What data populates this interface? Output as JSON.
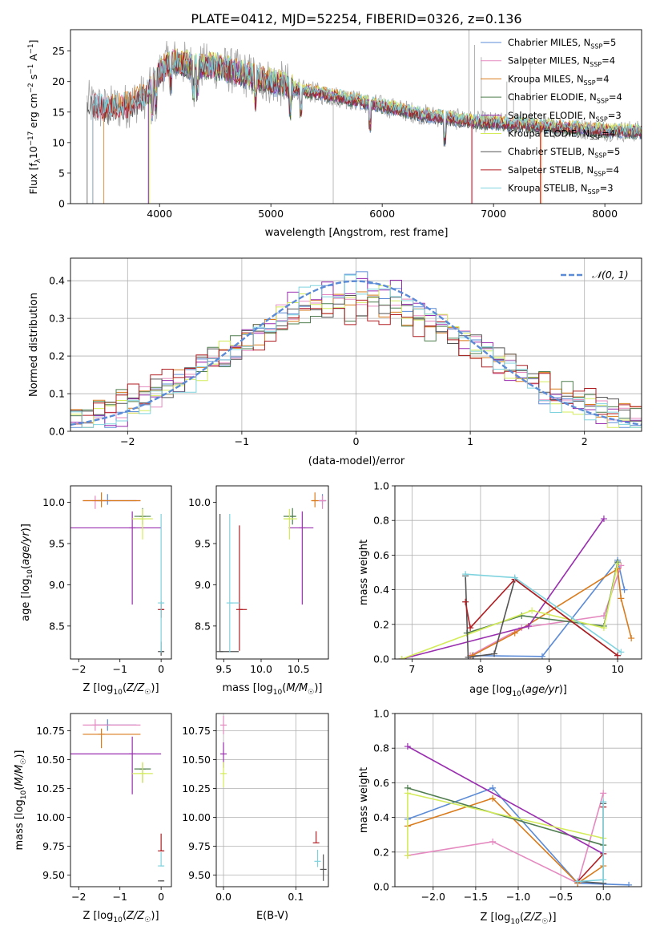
{
  "title": "PLATE=0412, MJD=52254, FIBERID=0326, z=0.136",
  "colors": {
    "Chabrier MILES": "#5b8bd6",
    "Salpeter MILES": "#e58ac0",
    "Kroupa MILES": "#d97b1c",
    "Chabrier ELODIE": "#4f7d4f",
    "Salpeter ELODIE": "#9a2fb0",
    "Kroupa ELODIE": "#d4ec5a",
    "Chabrier STELIB": "#555555",
    "Salpeter STELIB": "#b01e23",
    "Kroupa STELIB": "#7fd3df",
    "data": "#aaaaaa",
    "normal": "#5b8bd6"
  },
  "chart_data": [
    {
      "type": "line",
      "panel": "spectrum",
      "xlabel": "wavelength [Angstrom, rest frame]",
      "ylabel": "Flux [f_λ10^-17 erg cm^-2 s^-1 A^-1]",
      "xlim": [
        3200,
        8330
      ],
      "ylim": [
        0,
        28.5
      ],
      "xticks": [
        4000,
        5000,
        6000,
        7000,
        8000
      ],
      "yticks": [
        0,
        5,
        10,
        15,
        20,
        25
      ],
      "legend_position": "top-right",
      "grid": false,
      "series": [
        {
          "name": "Chabrier MILES",
          "nssp": "5"
        },
        {
          "name": "Salpeter MILES",
          "nssp": "4"
        },
        {
          "name": "Kroupa MILES",
          "nssp": "4"
        },
        {
          "name": "Chabrier ELODIE",
          "nssp": "4"
        },
        {
          "name": "Salpeter ELODIE",
          "nssp": "3"
        },
        {
          "name": "Kroupa ELODIE",
          "nssp": "4"
        },
        {
          "name": "Chabrier STELIB",
          "nssp": "5"
        },
        {
          "name": "Salpeter STELIB",
          "nssp": "4"
        },
        {
          "name": "Kroupa STELIB",
          "nssp": "3"
        }
      ],
      "continuum": {
        "x": [
          3350,
          3500,
          3700,
          3900,
          4000,
          4100,
          4300,
          4500,
          4800,
          5000,
          5300,
          5600,
          6000,
          6400,
          6800,
          7200,
          7600,
          8000,
          8300
        ],
        "y": [
          16.5,
          15.5,
          16.0,
          18.0,
          21.5,
          23.5,
          22.5,
          22.5,
          21.0,
          20.0,
          18.5,
          17.5,
          16.0,
          14.5,
          13.5,
          13.0,
          12.5,
          12.0,
          11.8
        ]
      }
    },
    {
      "type": "step",
      "panel": "residuals",
      "xlabel": "(data-model)/error",
      "ylabel": "Normed distribution",
      "xlim": [
        -2.5,
        2.5
      ],
      "ylim": [
        0,
        0.46
      ],
      "xticks": [
        -2,
        -1,
        0,
        1,
        2
      ],
      "yticks": [
        0.0,
        0.1,
        0.2,
        0.3,
        0.4
      ],
      "legend_position": "top-right",
      "grid": true,
      "normal_label": "𝒩(0, 1)",
      "normal": {
        "mean": 0,
        "sigma": 1
      },
      "bin_width": 0.1
    },
    {
      "type": "errorbar",
      "panel": "age-vs-Z",
      "xlabel": "Z [log10(Z/Z☉)]",
      "ylabel": "age [log10(age/yr)]",
      "xlim": [
        -2.2,
        0.25
      ],
      "ylim": [
        8.1,
        10.2
      ],
      "xticks": [
        -2,
        -1,
        0
      ],
      "yticks": [
        8.5,
        9.0,
        9.5,
        10.0
      ],
      "points": [
        {
          "series": "Chabrier MILES",
          "x": -1.3,
          "xerr": [
            0.3,
            0.7
          ],
          "y": 10.02,
          "yerr": [
            0.05,
            0.08
          ]
        },
        {
          "series": "Salpeter MILES",
          "x": -1.6,
          "xerr": [
            0.3,
            1.1
          ],
          "y": 10.02,
          "yerr": [
            0.1,
            0.06
          ]
        },
        {
          "series": "Kroupa MILES",
          "x": -1.45,
          "xerr": [
            0.45,
            0.95
          ],
          "y": 10.02,
          "yerr": [
            0.08,
            0.1
          ]
        },
        {
          "series": "Chabrier ELODIE",
          "x": -0.45,
          "xerr": [
            0.2,
            0.2
          ],
          "y": 9.83,
          "yerr": [
            0.1,
            0.1
          ]
        },
        {
          "series": "Salpeter ELODIE",
          "x": -0.7,
          "xerr": [
            1.5,
            0.7
          ],
          "y": 9.69,
          "yerr": [
            0.93,
            0.2
          ]
        },
        {
          "series": "Kroupa ELODIE",
          "x": -0.45,
          "xerr": [
            0.25,
            0.25
          ],
          "y": 9.8,
          "yerr": [
            0.25,
            0.12
          ]
        },
        {
          "series": "Chabrier STELIB",
          "x": 0.0,
          "xerr": [
            0.02,
            0.06
          ],
          "y": 8.19,
          "yerr": [
            0.05,
            0.12
          ]
        },
        {
          "series": "Salpeter STELIB",
          "x": 0.0,
          "xerr": [
            0.02,
            0.06
          ],
          "y": 8.7,
          "yerr": [
            0.1,
            0.1
          ]
        },
        {
          "series": "Kroupa STELIB",
          "x": 0.0,
          "xerr": [
            0.02,
            0.06
          ],
          "y": 8.78,
          "yerr": [
            0.6,
            1.08
          ]
        }
      ]
    },
    {
      "type": "errorbar",
      "panel": "age-vs-mass",
      "xlabel": "mass [log10(M/M☉)]",
      "ylabel": "",
      "xlim": [
        9.4,
        10.9
      ],
      "ylim": [
        8.1,
        10.2
      ],
      "xticks": [
        9.5,
        10.0,
        10.5
      ],
      "yticks": [
        8.5,
        9.0,
        9.5,
        10.0
      ],
      "points": [
        {
          "series": "Chabrier MILES",
          "x": 10.82,
          "xerr": [
            0.05,
            0.05
          ],
          "y": 10.02,
          "yerr": [
            0.05,
            0.08
          ]
        },
        {
          "series": "Salpeter MILES",
          "x": 10.82,
          "xerr": [
            0.05,
            0.05
          ],
          "y": 10.02,
          "yerr": [
            0.1,
            0.06
          ]
        },
        {
          "series": "Kroupa MILES",
          "x": 10.72,
          "xerr": [
            0.05,
            0.05
          ],
          "y": 10.02,
          "yerr": [
            0.08,
            0.1
          ]
        },
        {
          "series": "Chabrier ELODIE",
          "x": 10.42,
          "xerr": [
            0.12,
            0.05
          ],
          "y": 9.83,
          "yerr": [
            0.1,
            0.1
          ]
        },
        {
          "series": "Salpeter ELODIE",
          "x": 10.55,
          "xerr": [
            0.18,
            0.15
          ],
          "y": 9.69,
          "yerr": [
            0.93,
            0.2
          ]
        },
        {
          "series": "Kroupa ELODIE",
          "x": 10.38,
          "xerr": [
            0.08,
            0.1
          ],
          "y": 9.8,
          "yerr": [
            0.25,
            0.12
          ]
        },
        {
          "series": "Chabrier STELIB",
          "x": 9.45,
          "xerr": [
            0.0,
            0.25
          ],
          "y": 8.19,
          "yerr": [
            0.0,
            1.67
          ]
        },
        {
          "series": "Salpeter STELIB",
          "x": 9.71,
          "xerr": [
            0.01,
            0.1
          ],
          "y": 8.7,
          "yerr": [
            0.5,
            1.02
          ]
        },
        {
          "series": "Kroupa STELIB",
          "x": 9.58,
          "xerr": [
            0.0,
            0.13
          ],
          "y": 8.78,
          "yerr": [
            0.6,
            1.08
          ]
        }
      ]
    },
    {
      "type": "line",
      "panel": "weight-vs-age",
      "xlabel": "age [log10(age/yr)]",
      "ylabel": "mass weight",
      "xlim": [
        6.75,
        10.35
      ],
      "ylim": [
        0,
        1.0
      ],
      "xticks": [
        7,
        8,
        9,
        10
      ],
      "yticks": [
        0.0,
        0.2,
        0.4,
        0.6,
        0.8,
        1.0
      ],
      "grid": true,
      "series": [
        {
          "name": "Chabrier MILES",
          "x": [
            7.9,
            8.9,
            10.0,
            10.1
          ],
          "y": [
            0.02,
            0.015,
            0.57,
            0.4
          ]
        },
        {
          "name": "Salpeter MILES",
          "x": [
            7.85,
            8.6,
            9.8,
            10.05
          ],
          "y": [
            0.02,
            0.18,
            0.25,
            0.54
          ]
        },
        {
          "name": "Kroupa MILES",
          "x": [
            7.88,
            8.5,
            10.0,
            10.05,
            10.2
          ],
          "y": [
            0.02,
            0.15,
            0.52,
            0.35,
            0.12
          ]
        },
        {
          "name": "Chabrier ELODIE",
          "x": [
            7.8,
            8.6,
            9.8,
            10.0
          ],
          "y": [
            0.15,
            0.25,
            0.19,
            0.56
          ]
        },
        {
          "name": "Salpeter ELODIE",
          "x": [
            6.85,
            8.7,
            9.8
          ],
          "y": [
            0.0,
            0.19,
            0.81
          ]
        },
        {
          "name": "Kroupa ELODIE",
          "x": [
            6.85,
            8.75,
            9.8,
            10.0
          ],
          "y": [
            0.0,
            0.28,
            0.18,
            0.55
          ]
        },
        {
          "name": "Chabrier STELIB",
          "x": [
            7.78,
            7.82,
            8.2,
            8.5,
            10.0
          ],
          "y": [
            0.48,
            0.01,
            0.03,
            0.46,
            0.02
          ]
        },
        {
          "name": "Salpeter STELIB",
          "x": [
            7.78,
            7.85,
            8.5,
            10.0
          ],
          "y": [
            0.33,
            0.18,
            0.46,
            0.02
          ]
        },
        {
          "name": "Kroupa STELIB",
          "x": [
            7.78,
            8.5,
            10.05
          ],
          "y": [
            0.49,
            0.47,
            0.04
          ]
        }
      ]
    },
    {
      "type": "errorbar",
      "panel": "mass-vs-Z",
      "xlabel": "Z [log10(Z/Z☉)]",
      "ylabel": "mass [log10(M/M☉)]",
      "xlim": [
        -2.2,
        0.25
      ],
      "ylim": [
        9.4,
        10.9
      ],
      "xticks": [
        -2,
        -1,
        0
      ],
      "yticks": [
        9.5,
        9.75,
        10.0,
        10.25,
        10.5,
        10.75
      ],
      "points": [
        {
          "series": "Chabrier MILES",
          "x": -1.3,
          "xerr": [
            0.3,
            0.7
          ],
          "y": 10.8,
          "yerr": [
            0.05,
            0.05
          ]
        },
        {
          "series": "Salpeter MILES",
          "x": -1.6,
          "xerr": [
            0.3,
            1.1
          ],
          "y": 10.8,
          "yerr": [
            0.05,
            0.05
          ]
        },
        {
          "series": "Kroupa MILES",
          "x": -1.45,
          "xerr": [
            0.45,
            0.95
          ],
          "y": 10.72,
          "yerr": [
            0.12,
            0.05
          ]
        },
        {
          "series": "Chabrier ELODIE",
          "x": -0.45,
          "xerr": [
            0.2,
            0.2
          ],
          "y": 10.42,
          "yerr": [
            0.12,
            0.05
          ]
        },
        {
          "series": "Salpeter ELODIE",
          "x": -0.7,
          "xerr": [
            1.5,
            0.7
          ],
          "y": 10.55,
          "yerr": [
            0.35,
            0.15
          ]
        },
        {
          "series": "Kroupa ELODIE",
          "x": -0.45,
          "xerr": [
            0.25,
            0.25
          ],
          "y": 10.38,
          "yerr": [
            0.08,
            0.1
          ]
        },
        {
          "series": "Chabrier STELIB",
          "x": 0.0,
          "xerr": [
            0.02,
            0.06
          ],
          "y": 9.45,
          "yerr": [
            0.0,
            0.0
          ]
        },
        {
          "series": "Salpeter STELIB",
          "x": 0.0,
          "xerr": [
            0.02,
            0.06
          ],
          "y": 9.71,
          "yerr": [
            0.0,
            0.15
          ]
        },
        {
          "series": "Kroupa STELIB",
          "x": 0.0,
          "xerr": [
            0.02,
            0.06
          ],
          "y": 9.58,
          "yerr": [
            0.0,
            0.12
          ]
        }
      ]
    },
    {
      "type": "errorbar",
      "panel": "mass-vs-EBV",
      "xlabel": "E(B-V)",
      "ylabel": "",
      "xlim": [
        -0.01,
        0.145
      ],
      "ylim": [
        9.4,
        10.9
      ],
      "xticks": [
        0.0,
        0.1
      ],
      "yticks": [
        9.5,
        9.75,
        10.0,
        10.25,
        10.5,
        10.75
      ],
      "points": [
        {
          "series": "Salpeter MILES",
          "x": 0.0,
          "xerr": [
            0,
            0
          ],
          "y": 10.8,
          "yerr": [
            0.08,
            0.08
          ]
        },
        {
          "series": "Salpeter ELODIE",
          "x": 0.0,
          "xerr": [
            0,
            0
          ],
          "y": 10.55,
          "yerr": [
            0.12,
            0.1
          ]
        },
        {
          "series": "Kroupa ELODIE",
          "x": 0.0,
          "xerr": [
            0,
            0
          ],
          "y": 10.38,
          "yerr": [
            0.12,
            0.1
          ]
        },
        {
          "series": "Salpeter STELIB",
          "x": 0.128,
          "xerr": [
            0,
            0
          ],
          "y": 9.78,
          "yerr": [
            0.0,
            0.1
          ]
        },
        {
          "series": "Kroupa STELIB",
          "x": 0.13,
          "xerr": [
            0,
            0
          ],
          "y": 9.62,
          "yerr": [
            0.05,
            0.1
          ]
        },
        {
          "series": "Chabrier STELIB",
          "x": 0.138,
          "xerr": [
            0,
            0
          ],
          "y": 9.55,
          "yerr": [
            0.1,
            0.13
          ]
        }
      ]
    },
    {
      "type": "line",
      "panel": "weight-vs-Z",
      "xlabel": "Z [log10(Z/Z☉)]",
      "ylabel": "mass weight",
      "xlim": [
        -2.45,
        0.45
      ],
      "ylim": [
        0,
        1.0
      ],
      "xticks": [
        -2.0,
        -1.5,
        -1.0,
        -0.5,
        0.0
      ],
      "yticks": [
        0.0,
        0.2,
        0.4,
        0.6,
        0.8,
        1.0
      ],
      "grid": true,
      "series": [
        {
          "name": "Chabrier MILES",
          "x": [
            -2.3,
            -1.3,
            -0.3,
            0.3
          ],
          "y": [
            0.39,
            0.57,
            0.02,
            0.01
          ]
        },
        {
          "name": "Salpeter MILES",
          "x": [
            -2.3,
            -1.3,
            -0.3,
            0.0
          ],
          "y": [
            0.18,
            0.26,
            0.02,
            0.54
          ]
        },
        {
          "name": "Kroupa MILES",
          "x": [
            -2.3,
            -1.3,
            -0.3,
            0.0
          ],
          "y": [
            0.35,
            0.51,
            0.02,
            0.12
          ]
        },
        {
          "name": "Chabrier ELODIE",
          "x": [
            -2.3,
            0.0
          ],
          "y": [
            0.57,
            0.24
          ]
        },
        {
          "name": "Salpeter ELODIE",
          "x": [
            -2.3,
            0.0
          ],
          "y": [
            0.81,
            0.19
          ]
        },
        {
          "name": "Kroupa ELODIE",
          "x": [
            -2.3,
            -2.3,
            0.0
          ],
          "y": [
            0.18,
            0.54,
            0.28
          ]
        },
        {
          "name": "Chabrier STELIB",
          "x": [
            -0.3,
            0.0,
            0.0
          ],
          "y": [
            0.03,
            0.02,
            0.48
          ]
        },
        {
          "name": "Salpeter STELIB",
          "x": [
            -0.3,
            0.0,
            0.0
          ],
          "y": [
            0.03,
            0.19,
            0.46
          ]
        },
        {
          "name": "Kroupa STELIB",
          "x": [
            -0.3,
            0.0,
            0.0
          ],
          "y": [
            0.03,
            0.04,
            0.49
          ]
        }
      ]
    }
  ]
}
